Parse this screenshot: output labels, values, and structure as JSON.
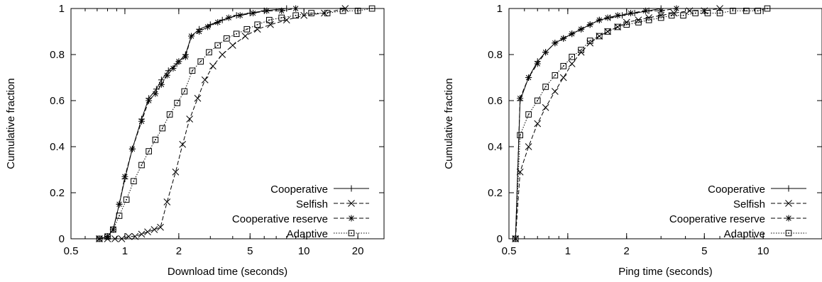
{
  "chart_data": [
    {
      "type": "line",
      "xlabel": "Download time (seconds)",
      "ylabel": "Cumulative fraction",
      "xscale": "log",
      "xlim": [
        0.5,
        28
      ],
      "ylim": [
        0,
        1
      ],
      "x_ticks": [
        0.5,
        1,
        2,
        5,
        10,
        20
      ],
      "x_tick_labels": [
        "0.5",
        "1",
        "2",
        "5",
        "10",
        "20"
      ],
      "y_ticks": [
        0,
        0.2,
        0.4,
        0.6,
        0.8,
        1
      ],
      "y_tick_labels": [
        "0",
        "0.2",
        "0.4",
        "0.6",
        "0.8",
        "1"
      ],
      "grid": false,
      "legend_position": "bottom-right",
      "series": [
        {
          "name": "Cooperative",
          "marker": "plus",
          "dash": "solid",
          "points": [
            [
              0.72,
              0.0
            ],
            [
              0.8,
              0.01
            ],
            [
              0.86,
              0.04
            ],
            [
              0.93,
              0.15
            ],
            [
              1.0,
              0.26
            ],
            [
              1.1,
              0.39
            ],
            [
              1.24,
              0.52
            ],
            [
              1.36,
              0.61
            ],
            [
              1.5,
              0.65
            ],
            [
              1.6,
              0.69
            ],
            [
              1.75,
              0.73
            ],
            [
              1.95,
              0.76
            ],
            [
              2.18,
              0.8
            ],
            [
              2.35,
              0.88
            ],
            [
              2.6,
              0.91
            ],
            [
              3.0,
              0.93
            ],
            [
              3.5,
              0.95
            ],
            [
              4.2,
              0.97
            ],
            [
              5.0,
              0.98
            ],
            [
              6.0,
              0.99
            ],
            [
              8.0,
              1.0
            ]
          ]
        },
        {
          "name": "Selfish",
          "marker": "x",
          "dash": "dashed",
          "points": [
            [
              0.72,
              0.0
            ],
            [
              0.8,
              0.0
            ],
            [
              0.88,
              0.0
            ],
            [
              0.96,
              0.0
            ],
            [
              1.05,
              0.01
            ],
            [
              1.14,
              0.01
            ],
            [
              1.24,
              0.02
            ],
            [
              1.34,
              0.03
            ],
            [
              1.46,
              0.04
            ],
            [
              1.58,
              0.05
            ],
            [
              1.72,
              0.16
            ],
            [
              1.92,
              0.29
            ],
            [
              2.1,
              0.41
            ],
            [
              2.3,
              0.52
            ],
            [
              2.55,
              0.61
            ],
            [
              2.8,
              0.69
            ],
            [
              3.1,
              0.75
            ],
            [
              3.5,
              0.8
            ],
            [
              4.0,
              0.84
            ],
            [
              4.7,
              0.88
            ],
            [
              5.5,
              0.91
            ],
            [
              6.5,
              0.93
            ],
            [
              8.0,
              0.95
            ],
            [
              10.0,
              0.97
            ],
            [
              13.0,
              0.98
            ],
            [
              17.0,
              1.0
            ]
          ]
        },
        {
          "name": "Cooperative reserve",
          "marker": "star",
          "dash": "dashed",
          "points": [
            [
              0.72,
              0.0
            ],
            [
              0.8,
              0.01
            ],
            [
              0.86,
              0.04
            ],
            [
              0.93,
              0.15
            ],
            [
              1.0,
              0.27
            ],
            [
              1.1,
              0.39
            ],
            [
              1.24,
              0.51
            ],
            [
              1.36,
              0.6
            ],
            [
              1.48,
              0.63
            ],
            [
              1.6,
              0.67
            ],
            [
              1.72,
              0.71
            ],
            [
              1.86,
              0.74
            ],
            [
              2.0,
              0.77
            ],
            [
              2.18,
              0.79
            ],
            [
              2.35,
              0.88
            ],
            [
              2.6,
              0.9
            ],
            [
              2.9,
              0.92
            ],
            [
              3.3,
              0.94
            ],
            [
              3.8,
              0.96
            ],
            [
              4.4,
              0.97
            ],
            [
              5.2,
              0.98
            ],
            [
              6.2,
              0.99
            ],
            [
              7.5,
              0.99
            ],
            [
              9.0,
              1.0
            ]
          ]
        },
        {
          "name": "Adaptive",
          "marker": "square",
          "dash": "dotted",
          "points": [
            [
              0.72,
              0.0
            ],
            [
              0.8,
              0.01
            ],
            [
              0.86,
              0.04
            ],
            [
              0.93,
              0.1
            ],
            [
              1.02,
              0.17
            ],
            [
              1.12,
              0.25
            ],
            [
              1.24,
              0.32
            ],
            [
              1.36,
              0.38
            ],
            [
              1.48,
              0.43
            ],
            [
              1.62,
              0.48
            ],
            [
              1.78,
              0.54
            ],
            [
              1.96,
              0.59
            ],
            [
              2.15,
              0.64
            ],
            [
              2.38,
              0.73
            ],
            [
              2.65,
              0.77
            ],
            [
              2.95,
              0.81
            ],
            [
              3.3,
              0.84
            ],
            [
              3.7,
              0.87
            ],
            [
              4.2,
              0.89
            ],
            [
              4.8,
              0.91
            ],
            [
              5.5,
              0.93
            ],
            [
              6.4,
              0.95
            ],
            [
              7.5,
              0.96
            ],
            [
              9.0,
              0.97
            ],
            [
              11.0,
              0.98
            ],
            [
              13.5,
              0.98
            ],
            [
              16.5,
              0.99
            ],
            [
              20.0,
              0.99
            ],
            [
              24.0,
              1.0
            ]
          ]
        }
      ]
    },
    {
      "type": "line",
      "xlabel": "Ping time (seconds)",
      "ylabel": "Cumulative fraction",
      "xscale": "log",
      "xlim": [
        0.5,
        20
      ],
      "ylim": [
        0,
        1
      ],
      "x_ticks": [
        0.5,
        1,
        2,
        5,
        10
      ],
      "x_tick_labels": [
        "0.5",
        "1",
        "2",
        "5",
        "10"
      ],
      "y_ticks": [
        0,
        0.2,
        0.4,
        0.6,
        0.8,
        1
      ],
      "y_tick_labels": [
        "0",
        "0.2",
        "0.4",
        "0.6",
        "0.8",
        "1"
      ],
      "grid": false,
      "legend_position": "bottom-right",
      "series": [
        {
          "name": "Cooperative",
          "marker": "plus",
          "dash": "solid",
          "points": [
            [
              0.54,
              0.0
            ],
            [
              0.57,
              0.6
            ],
            [
              0.63,
              0.7
            ],
            [
              0.7,
              0.77
            ],
            [
              0.77,
              0.81
            ],
            [
              0.86,
              0.85
            ],
            [
              0.95,
              0.87
            ],
            [
              1.05,
              0.89
            ],
            [
              1.17,
              0.91
            ],
            [
              1.3,
              0.93
            ],
            [
              1.45,
              0.95
            ],
            [
              1.65,
              0.96
            ],
            [
              1.9,
              0.97
            ],
            [
              2.2,
              0.98
            ],
            [
              2.6,
              0.99
            ],
            [
              3.0,
              1.0
            ]
          ]
        },
        {
          "name": "Selfish",
          "marker": "x",
          "dash": "dashed",
          "points": [
            [
              0.54,
              0.0
            ],
            [
              0.57,
              0.29
            ],
            [
              0.63,
              0.4
            ],
            [
              0.7,
              0.5
            ],
            [
              0.77,
              0.57
            ],
            [
              0.86,
              0.64
            ],
            [
              0.95,
              0.7
            ],
            [
              1.05,
              0.76
            ],
            [
              1.17,
              0.81
            ],
            [
              1.3,
              0.85
            ],
            [
              1.45,
              0.88
            ],
            [
              1.6,
              0.9
            ],
            [
              1.8,
              0.92
            ],
            [
              2.0,
              0.94
            ],
            [
              2.3,
              0.95
            ],
            [
              2.6,
              0.96
            ],
            [
              3.0,
              0.97
            ],
            [
              3.5,
              0.98
            ],
            [
              4.2,
              0.99
            ],
            [
              5.0,
              0.99
            ],
            [
              6.0,
              1.0
            ]
          ]
        },
        {
          "name": "Cooperative reserve",
          "marker": "star",
          "dash": "dashed",
          "points": [
            [
              0.54,
              0.0
            ],
            [
              0.57,
              0.61
            ],
            [
              0.63,
              0.7
            ],
            [
              0.7,
              0.76
            ],
            [
              0.77,
              0.81
            ],
            [
              0.86,
              0.85
            ],
            [
              0.95,
              0.87
            ],
            [
              1.05,
              0.89
            ],
            [
              1.17,
              0.91
            ],
            [
              1.3,
              0.93
            ],
            [
              1.45,
              0.95
            ],
            [
              1.6,
              0.96
            ],
            [
              1.8,
              0.97
            ],
            [
              2.1,
              0.98
            ],
            [
              2.5,
              0.99
            ],
            [
              3.0,
              0.99
            ],
            [
              3.6,
              1.0
            ]
          ]
        },
        {
          "name": "Adaptive",
          "marker": "square",
          "dash": "dotted",
          "points": [
            [
              0.54,
              0.0
            ],
            [
              0.57,
              0.45
            ],
            [
              0.63,
              0.54
            ],
            [
              0.7,
              0.6
            ],
            [
              0.77,
              0.66
            ],
            [
              0.86,
              0.71
            ],
            [
              0.95,
              0.75
            ],
            [
              1.05,
              0.79
            ],
            [
              1.17,
              0.82
            ],
            [
              1.3,
              0.86
            ],
            [
              1.45,
              0.88
            ],
            [
              1.6,
              0.9
            ],
            [
              1.8,
              0.92
            ],
            [
              2.0,
              0.93
            ],
            [
              2.3,
              0.94
            ],
            [
              2.6,
              0.95
            ],
            [
              3.0,
              0.96
            ],
            [
              3.4,
              0.97
            ],
            [
              3.9,
              0.97
            ],
            [
              4.5,
              0.98
            ],
            [
              5.2,
              0.98
            ],
            [
              6.0,
              0.98
            ],
            [
              7.0,
              0.99
            ],
            [
              8.2,
              0.99
            ],
            [
              9.4,
              0.99
            ],
            [
              10.5,
              1.0
            ]
          ]
        }
      ]
    }
  ]
}
